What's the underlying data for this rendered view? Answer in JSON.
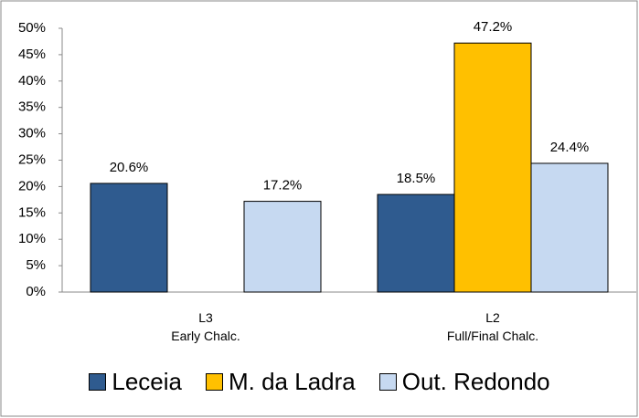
{
  "chart_data": {
    "type": "bar",
    "categories": [
      "L3\nEarly Chalc.",
      "L2\nFull/Final Chalc."
    ],
    "series": [
      {
        "name": "Leceia",
        "color": "#2f5b8f",
        "values": [
          20.6,
          18.5
        ],
        "value_labels": [
          "20.6%",
          "18.5%"
        ]
      },
      {
        "name": "M. da Ladra",
        "color": "#ffc000",
        "values": [
          null,
          47.2
        ],
        "value_labels": [
          null,
          "47.2%"
        ]
      },
      {
        "name": "Out. Redondo",
        "color": "#c6d9f1",
        "values": [
          17.2,
          24.4
        ],
        "value_labels": [
          "17.2%",
          "24.4%"
        ]
      }
    ],
    "ylim": [
      0,
      50
    ],
    "yticks": [
      {
        "value": 0,
        "label": "0%"
      },
      {
        "value": 5,
        "label": "5%"
      },
      {
        "value": 10,
        "label": "10%"
      },
      {
        "value": 15,
        "label": "15%"
      },
      {
        "value": 20,
        "label": "20%"
      },
      {
        "value": 25,
        "label": "25%"
      },
      {
        "value": 30,
        "label": "30%"
      },
      {
        "value": 35,
        "label": "35%"
      },
      {
        "value": 40,
        "label": "40%"
      },
      {
        "value": 45,
        "label": "45%"
      },
      {
        "value": 50,
        "label": "50%"
      }
    ],
    "grid": false,
    "legend": "bottom"
  }
}
